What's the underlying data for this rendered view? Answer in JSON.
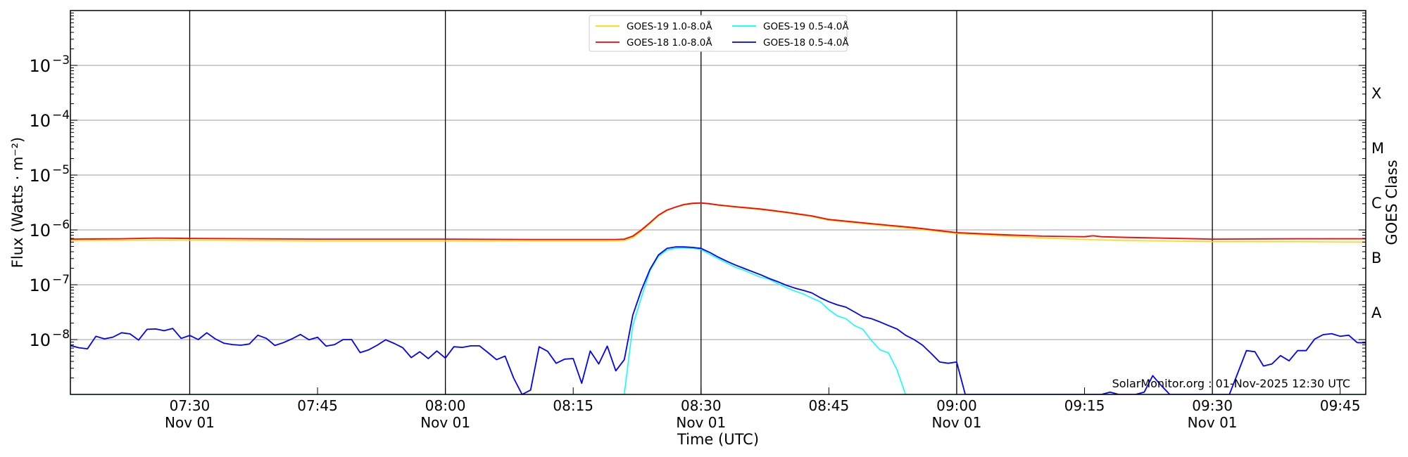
{
  "chart_data": {
    "type": "line",
    "title": "",
    "xlabel": "Time (UTC)",
    "ylabel": "Flux (Watts · m⁻²)",
    "ylabel_right": "GOES Class",
    "y_scale": "log",
    "ylim": [
      1e-09,
      0.01
    ],
    "xlim": [
      "07:16",
      "09:48"
    ],
    "grid": "horizontal at each decade",
    "y_tick_labels": [
      {
        "value": 1e-08,
        "base": "10",
        "exp": "−8"
      },
      {
        "value": 1e-07,
        "base": "10",
        "exp": "−7"
      },
      {
        "value": 1e-06,
        "base": "10",
        "exp": "−6"
      },
      {
        "value": 1e-05,
        "base": "10",
        "exp": "−5"
      },
      {
        "value": 0.0001,
        "base": "10",
        "exp": "−4"
      },
      {
        "value": 0.001,
        "base": "10",
        "exp": "−3"
      }
    ],
    "x_ticks": [
      {
        "time": "07:30",
        "label": "07:30",
        "date": "Nov 01"
      },
      {
        "time": "07:45",
        "label": "07:45",
        "date": ""
      },
      {
        "time": "08:00",
        "label": "08:00",
        "date": "Nov 01"
      },
      {
        "time": "08:15",
        "label": "08:15",
        "date": ""
      },
      {
        "time": "08:30",
        "label": "08:30",
        "date": "Nov 01"
      },
      {
        "time": "08:45",
        "label": "08:45",
        "date": ""
      },
      {
        "time": "09:00",
        "label": "09:00",
        "date": "Nov 01"
      },
      {
        "time": "09:15",
        "label": "09:15",
        "date": ""
      },
      {
        "time": "09:30",
        "label": "09:30",
        "date": "Nov 01"
      },
      {
        "time": "09:45",
        "label": "09:45",
        "date": ""
      }
    ],
    "vertical_lines": [
      "07:30",
      "08:00",
      "08:30",
      "09:00",
      "09:30"
    ],
    "goes_classes": [
      {
        "label": "X",
        "value": 0.000316
      },
      {
        "label": "M",
        "value": 3.16e-05
      },
      {
        "label": "C",
        "value": 3.16e-06
      },
      {
        "label": "B",
        "value": 3.16e-07
      },
      {
        "label": "A",
        "value": 3.16e-08
      }
    ],
    "legend_position": "top-center",
    "annotation": "SolarMonitor.org : 01-Nov-2025 12:30 UTC",
    "series": [
      {
        "name": "GOES-19 1.0-8.0Å",
        "color": "#FFD700",
        "points": [
          [
            "07:16",
            6.4e-07
          ],
          [
            "07:25",
            6.5e-07
          ],
          [
            "07:30",
            6.5e-07
          ],
          [
            "07:45",
            6.3e-07
          ],
          [
            "08:00",
            6.3e-07
          ],
          [
            "08:10",
            6.3e-07
          ],
          [
            "08:20",
            6.3e-07
          ],
          [
            "08:21",
            6.4e-07
          ],
          [
            "08:22",
            7.2e-07
          ],
          [
            "08:23",
            9.5e-07
          ],
          [
            "08:24",
            1.3e-06
          ],
          [
            "08:25",
            1.8e-06
          ],
          [
            "08:26",
            2.25e-06
          ],
          [
            "08:27",
            2.6e-06
          ],
          [
            "08:28",
            2.85e-06
          ],
          [
            "08:29",
            3e-06
          ],
          [
            "08:30",
            3.1e-06
          ],
          [
            "08:31",
            3e-06
          ],
          [
            "08:32",
            2.8e-06
          ],
          [
            "08:34",
            2.6e-06
          ],
          [
            "08:37",
            2.35e-06
          ],
          [
            "08:40",
            2.05e-06
          ],
          [
            "08:43",
            1.75e-06
          ],
          [
            "08:45",
            1.5e-06
          ],
          [
            "08:50",
            1.25e-06
          ],
          [
            "08:55",
            1.05e-06
          ],
          [
            "09:00",
            8.6e-07
          ],
          [
            "09:05",
            7.8e-07
          ],
          [
            "09:10",
            7.1e-07
          ],
          [
            "09:15",
            6.7e-07
          ],
          [
            "09:20",
            6.4e-07
          ],
          [
            "09:30",
            6.1e-07
          ],
          [
            "09:40",
            6.1e-07
          ],
          [
            "09:48",
            6e-07
          ]
        ]
      },
      {
        "name": "GOES-18 1.0-8.0Å",
        "color": "#FF0000",
        "points": [
          [
            "07:16",
            6.8e-07
          ],
          [
            "07:22",
            6.9e-07
          ],
          [
            "07:26",
            7.1e-07
          ],
          [
            "07:30",
            7e-07
          ],
          [
            "07:45",
            6.8e-07
          ],
          [
            "08:00",
            6.8e-07
          ],
          [
            "08:10",
            6.7e-07
          ],
          [
            "08:20",
            6.7e-07
          ],
          [
            "08:21",
            6.8e-07
          ],
          [
            "08:22",
            7.7e-07
          ],
          [
            "08:23",
            1e-06
          ],
          [
            "08:24",
            1.35e-06
          ],
          [
            "08:25",
            1.86e-06
          ],
          [
            "08:26",
            2.3e-06
          ],
          [
            "08:27",
            2.6e-06
          ],
          [
            "08:28",
            2.9e-06
          ],
          [
            "08:29",
            3.05e-06
          ],
          [
            "08:30",
            3.1e-06
          ],
          [
            "08:31",
            3e-06
          ],
          [
            "08:32",
            2.85e-06
          ],
          [
            "08:34",
            2.65e-06
          ],
          [
            "08:37",
            2.4e-06
          ],
          [
            "08:40",
            2.1e-06
          ],
          [
            "08:43",
            1.8e-06
          ],
          [
            "08:45",
            1.55e-06
          ],
          [
            "08:50",
            1.3e-06
          ],
          [
            "08:55",
            1.1e-06
          ],
          [
            "09:00",
            8.9e-07
          ],
          [
            "09:05",
            8.2e-07
          ],
          [
            "09:10",
            7.7e-07
          ],
          [
            "09:15",
            7.5e-07
          ],
          [
            "09:16",
            7.8e-07
          ],
          [
            "09:17",
            7.5e-07
          ],
          [
            "09:20",
            7.3e-07
          ],
          [
            "09:30",
            6.8e-07
          ],
          [
            "09:40",
            6.9e-07
          ],
          [
            "09:48",
            6.9e-07
          ]
        ]
      },
      {
        "name": "GOES-19 0.5-4.0Å",
        "color": "#00FFFF",
        "points": [
          [
            "07:16",
            1e-09
          ],
          [
            "08:21",
            1e-09
          ],
          [
            "08:22",
            1.8e-08
          ],
          [
            "08:23",
            5.9e-08
          ],
          [
            "08:24",
            1.8e-07
          ],
          [
            "08:25",
            3.3e-07
          ],
          [
            "08:26",
            4.3e-07
          ],
          [
            "08:27",
            4.6e-07
          ],
          [
            "08:28",
            4.7e-07
          ],
          [
            "08:29",
            4.6e-07
          ],
          [
            "08:30",
            4.4e-07
          ],
          [
            "08:31",
            3.6e-07
          ],
          [
            "08:32",
            3e-07
          ],
          [
            "08:33",
            2.5e-07
          ],
          [
            "08:34",
            2.1e-07
          ],
          [
            "08:35",
            1.85e-07
          ],
          [
            "08:36",
            1.59e-07
          ],
          [
            "08:37",
            1.37e-07
          ],
          [
            "08:38",
            1.26e-07
          ],
          [
            "08:39",
            1.05e-07
          ],
          [
            "08:40",
            8.9e-08
          ],
          [
            "08:41",
            7.7e-08
          ],
          [
            "08:42",
            6.8e-08
          ],
          [
            "08:43",
            5.7e-08
          ],
          [
            "08:44",
            4.9e-08
          ],
          [
            "08:45",
            3.5e-08
          ],
          [
            "08:46",
            2.7e-08
          ],
          [
            "08:47",
            2.4e-08
          ],
          [
            "08:48",
            1.8e-08
          ],
          [
            "08:49",
            1.54e-08
          ],
          [
            "08:50",
            9.6e-09
          ],
          [
            "08:51",
            6.5e-09
          ],
          [
            "08:52",
            5.7e-09
          ],
          [
            "08:53",
            2.8e-09
          ],
          [
            "08:54",
            1e-09
          ],
          [
            "09:48",
            1e-09
          ]
        ]
      },
      {
        "name": "GOES-18 0.5-4.0Å",
        "color": "#0000FF",
        "points": [
          [
            "07:16",
            7.8e-09
          ],
          [
            "07:17",
            7.1e-09
          ],
          [
            "07:18",
            6.8e-09
          ],
          [
            "07:19",
            1.15e-08
          ],
          [
            "07:20",
            1.03e-08
          ],
          [
            "07:21",
            1.11e-08
          ],
          [
            "07:22",
            1.33e-08
          ],
          [
            "07:23",
            1.27e-08
          ],
          [
            "07:24",
            9.8e-09
          ],
          [
            "07:25",
            1.54e-08
          ],
          [
            "07:26",
            1.56e-08
          ],
          [
            "07:27",
            1.45e-08
          ],
          [
            "07:28",
            1.6e-08
          ],
          [
            "07:29",
            1.05e-08
          ],
          [
            "07:30",
            1.19e-08
          ],
          [
            "07:31",
            1e-08
          ],
          [
            "07:32",
            1.33e-08
          ],
          [
            "07:33",
            1.03e-08
          ],
          [
            "07:34",
            8.6e-09
          ],
          [
            "07:35",
            8.1e-09
          ],
          [
            "07:36",
            7.9e-09
          ],
          [
            "07:37",
            8.3e-09
          ],
          [
            "07:38",
            1.2e-08
          ],
          [
            "07:39",
            1.05e-08
          ],
          [
            "07:40",
            7.8e-09
          ],
          [
            "07:41",
            8.8e-09
          ],
          [
            "07:42",
            1.03e-08
          ],
          [
            "07:43",
            1.24e-08
          ],
          [
            "07:44",
            9.9e-09
          ],
          [
            "07:45",
            1.1e-08
          ],
          [
            "07:46",
            7.6e-09
          ],
          [
            "07:47",
            8.1e-09
          ],
          [
            "07:48",
            1e-08
          ],
          [
            "07:49",
            1e-08
          ],
          [
            "07:50",
            5.8e-09
          ],
          [
            "07:51",
            6.5e-09
          ],
          [
            "07:52",
            7.9e-09
          ],
          [
            "07:53",
            9.9e-09
          ],
          [
            "07:54",
            8.5e-09
          ],
          [
            "07:55",
            7.1e-09
          ],
          [
            "07:56",
            4.7e-09
          ],
          [
            "07:57",
            6e-09
          ],
          [
            "07:58",
            4.5e-09
          ],
          [
            "07:59",
            6.2e-09
          ],
          [
            "08:00",
            4.6e-09
          ],
          [
            "08:01",
            7.4e-09
          ],
          [
            "08:02",
            7.2e-09
          ],
          [
            "08:03",
            7.7e-09
          ],
          [
            "08:04",
            7.7e-09
          ],
          [
            "08:05",
            5.8e-09
          ],
          [
            "08:06",
            4.3e-09
          ],
          [
            "08:07",
            5e-09
          ],
          [
            "08:08",
            2e-09
          ],
          [
            "08:09",
            1e-09
          ],
          [
            "08:10",
            1.2e-09
          ],
          [
            "08:11",
            7.4e-09
          ],
          [
            "08:12",
            6.1e-09
          ],
          [
            "08:13",
            3.7e-09
          ],
          [
            "08:14",
            4.4e-09
          ],
          [
            "08:15",
            4.5e-09
          ],
          [
            "08:16",
            1.6e-09
          ],
          [
            "08:17",
            6.2e-09
          ],
          [
            "08:18",
            3.6e-09
          ],
          [
            "08:19",
            7.6e-09
          ],
          [
            "08:20",
            2.7e-09
          ],
          [
            "08:21",
            4.3e-09
          ],
          [
            "08:22",
            2.8e-08
          ],
          [
            "08:23",
            8e-08
          ],
          [
            "08:24",
            1.9e-07
          ],
          [
            "08:25",
            3.5e-07
          ],
          [
            "08:26",
            4.6e-07
          ],
          [
            "08:27",
            4.9e-07
          ],
          [
            "08:28",
            4.9e-07
          ],
          [
            "08:29",
            4.8e-07
          ],
          [
            "08:30",
            4.6e-07
          ],
          [
            "08:31",
            3.9e-07
          ],
          [
            "08:32",
            3.2e-07
          ],
          [
            "08:33",
            2.7e-07
          ],
          [
            "08:34",
            2.3e-07
          ],
          [
            "08:35",
            2e-07
          ],
          [
            "08:36",
            1.74e-07
          ],
          [
            "08:37",
            1.52e-07
          ],
          [
            "08:38",
            1.3e-07
          ],
          [
            "08:39",
            1.14e-07
          ],
          [
            "08:40",
            9.8e-08
          ],
          [
            "08:41",
            8.7e-08
          ],
          [
            "08:42",
            7.9e-08
          ],
          [
            "08:43",
            7.1e-08
          ],
          [
            "08:44",
            5.8e-08
          ],
          [
            "08:45",
            4.9e-08
          ],
          [
            "08:46",
            4.3e-08
          ],
          [
            "08:47",
            3.9e-08
          ],
          [
            "08:48",
            3.2e-08
          ],
          [
            "08:49",
            2.6e-08
          ],
          [
            "08:50",
            2.4e-08
          ],
          [
            "08:51",
            2.1e-08
          ],
          [
            "08:52",
            1.8e-08
          ],
          [
            "08:53",
            1.56e-08
          ],
          [
            "08:54",
            1.2e-08
          ],
          [
            "08:55",
            1e-08
          ],
          [
            "08:56",
            7.9e-09
          ],
          [
            "08:57",
            5.6e-09
          ],
          [
            "08:58",
            3.9e-09
          ],
          [
            "08:59",
            3.7e-09
          ],
          [
            "09:00",
            3.9e-09
          ],
          [
            "09:01",
            1e-09
          ],
          [
            "09:17",
            1e-09
          ],
          [
            "09:18",
            1.1e-09
          ],
          [
            "09:19",
            1e-09
          ],
          [
            "09:21",
            1e-09
          ],
          [
            "09:22",
            1.1e-09
          ],
          [
            "09:23",
            2.2e-09
          ],
          [
            "09:24",
            1.45e-09
          ],
          [
            "09:25",
            1e-09
          ],
          [
            "09:32",
            1e-09
          ],
          [
            "09:33",
            2.5e-09
          ],
          [
            "09:34",
            6.3e-09
          ],
          [
            "09:35",
            6e-09
          ],
          [
            "09:36",
            3.3e-09
          ],
          [
            "09:37",
            3.6e-09
          ],
          [
            "09:38",
            5.1e-09
          ],
          [
            "09:39",
            4.1e-09
          ],
          [
            "09:40",
            6.3e-09
          ],
          [
            "09:41",
            6.3e-09
          ],
          [
            "09:42",
            1.02e-08
          ],
          [
            "09:43",
            1.23e-08
          ],
          [
            "09:44",
            1.28e-08
          ],
          [
            "09:45",
            1.15e-08
          ],
          [
            "09:46",
            1.2e-08
          ],
          [
            "09:47",
            8.8e-09
          ],
          [
            "09:48",
            8.7e-09
          ]
        ]
      }
    ]
  }
}
